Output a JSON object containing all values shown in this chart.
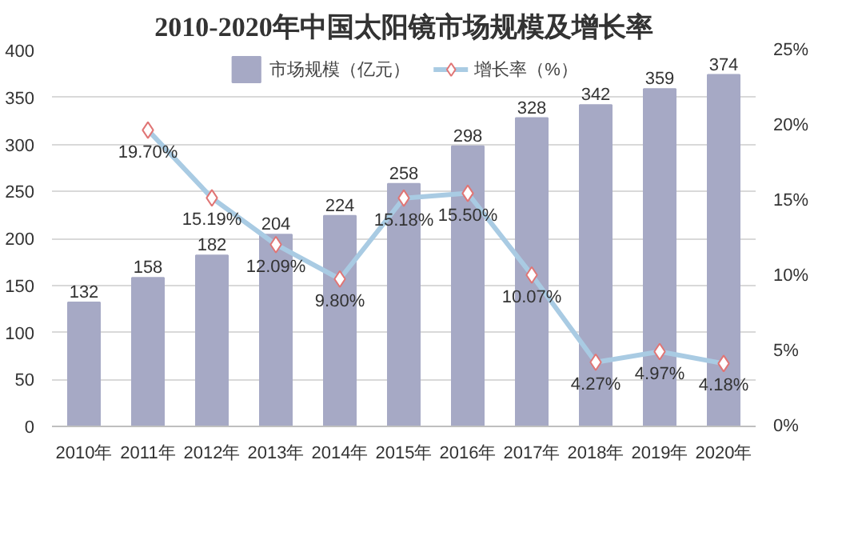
{
  "chart_data": {
    "type": "bar",
    "title": "2010-2020年中国太阳镜市场规模及增长率",
    "categories": [
      "2010年",
      "2011年",
      "2012年",
      "2013年",
      "2014年",
      "2015年",
      "2016年",
      "2017年",
      "2018年",
      "2019年",
      "2020年"
    ],
    "series": [
      {
        "name": "市场规模（亿元）",
        "color": "#a6a9c5",
        "values": [
          132,
          158,
          182,
          204,
          224,
          258,
          298,
          328,
          342,
          359,
          374
        ],
        "value_labels": [
          "132",
          "158",
          "182",
          "204",
          "224",
          "258",
          "298",
          "328",
          "342",
          "359",
          "374"
        ]
      },
      {
        "name": "增长率（%）",
        "type": "line",
        "axis": "y2",
        "marker": "diamond",
        "color": "#a9cbe3",
        "values": [
          null,
          19.7,
          15.19,
          12.09,
          9.8,
          15.18,
          15.5,
          10.07,
          4.27,
          4.97,
          4.18
        ],
        "value_labels": [
          null,
          "19.70%",
          "15.19%",
          "12.09%",
          "9.80%",
          "15.18%",
          "15.50%",
          "10.07%",
          "4.27%",
          "4.97%",
          "4.18%"
        ]
      }
    ],
    "ylim": [
      0,
      400
    ],
    "yticks": [
      0,
      50,
      100,
      150,
      200,
      250,
      300,
      350,
      400
    ],
    "y2lim": [
      0,
      25
    ],
    "y2ticks": [
      {
        "value": 0,
        "label": "0%"
      },
      {
        "value": 5,
        "label": "5%"
      },
      {
        "value": 10,
        "label": "10%"
      },
      {
        "value": 15,
        "label": "15%"
      },
      {
        "value": 20,
        "label": "20%"
      },
      {
        "value": 25,
        "label": "25%"
      }
    ],
    "grid": "y",
    "legend": "top"
  }
}
